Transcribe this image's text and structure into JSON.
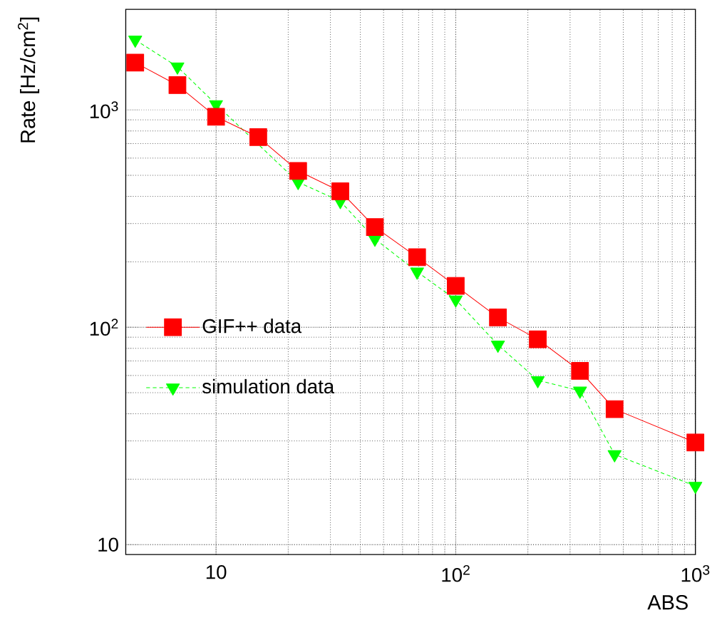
{
  "chart_data": {
    "type": "line",
    "xlabel": "ABS",
    "ylabel": "Rate [Hz/cm$^{2}$]",
    "x": [
      4.6,
      6.9,
      10,
      15,
      22,
      33,
      46,
      69,
      100,
      150,
      220,
      330,
      460,
      1000
    ],
    "series": [
      {
        "name": "GIF++ data",
        "color": "#ff0000",
        "marker": "square",
        "line_style": "solid",
        "values": [
          1650,
          1300,
          930,
          750,
          524,
          422,
          289,
          210,
          155,
          111,
          88,
          63,
          42,
          29.5
        ]
      },
      {
        "name": "simulation data",
        "color": "#00ff00",
        "marker": "triangle",
        "line_style": "dashed",
        "values": [
          2100,
          1580,
          1060,
          null,
          465,
          380,
          255,
          180,
          134,
          83,
          57,
          51,
          26,
          18.6
        ]
      }
    ],
    "log": "xy",
    "xlim": [
      4.2,
      1000
    ],
    "ylim": [
      9,
      2900
    ],
    "xticks": [
      10,
      {
        "value": 100,
        "label": "10$^{2}$"
      },
      {
        "value": 1000,
        "label": "10$^{3}$"
      }
    ],
    "yticks": [
      10,
      {
        "value": 100,
        "label": "10$^{2}$"
      },
      {
        "value": 1000,
        "label": "10$^{3}$"
      }
    ],
    "grid": true,
    "legend": "left"
  }
}
